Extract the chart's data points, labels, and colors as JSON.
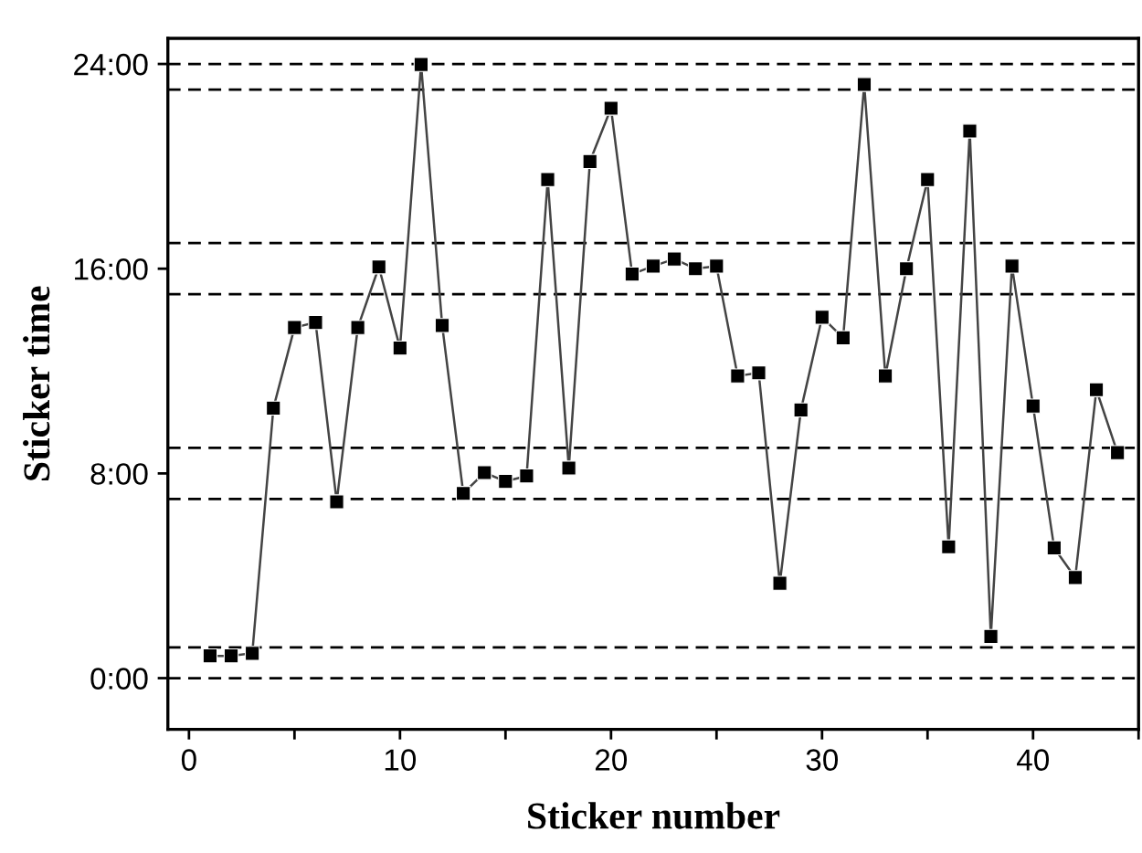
{
  "chart_data": {
    "type": "line",
    "xlabel": "Sticker number",
    "ylabel": "Sticker time",
    "x": [
      1,
      2,
      3,
      4,
      5,
      6,
      7,
      8,
      9,
      10,
      11,
      12,
      13,
      14,
      15,
      16,
      17,
      18,
      19,
      20,
      21,
      22,
      23,
      24,
      25,
      26,
      27,
      28,
      29,
      30,
      31,
      32,
      33,
      34,
      35,
      36,
      37,
      38,
      39,
      40,
      41,
      42,
      43,
      44
    ],
    "series": [
      {
        "color": "#000000",
        "values": [
          0.87,
          0.87,
          0.97,
          10.55,
          13.7,
          13.9,
          6.89,
          13.7,
          16.07,
          12.9,
          23.98,
          13.78,
          7.22,
          8.03,
          7.69,
          7.9,
          19.48,
          8.21,
          20.19,
          22.27,
          15.79,
          16.1,
          16.38,
          16.0,
          16.1,
          11.81,
          11.93,
          3.71,
          10.48,
          14.1,
          13.3,
          23.2,
          11.81,
          16.0,
          19.48,
          5.13,
          21.38,
          1.63,
          16.1,
          10.63,
          5.09,
          3.93,
          11.27,
          8.81
        ]
      }
    ],
    "marker": "square",
    "line_style": "solid",
    "xlim": [
      -1,
      45
    ],
    "ylim": [
      -2,
      25
    ],
    "xticks": [
      0,
      {
        "value": 5,
        "label": null
      },
      10,
      {
        "value": 15,
        "label": null
      },
      20,
      {
        "value": 25,
        "label": null
      },
      30,
      {
        "value": 35,
        "label": null
      },
      40,
      {
        "value": 45,
        "label": null
      }
    ],
    "yticks": [
      {
        "value": 0,
        "label": "0:00"
      },
      {
        "value": 8,
        "label": "8:00"
      },
      {
        "value": 16,
        "label": "16:00"
      },
      {
        "value": 24,
        "label": "24:00"
      }
    ],
    "ref_lines": [
      {
        "axis": "y",
        "value": 0,
        "line_style": "dashed"
      },
      {
        "axis": "y",
        "value": 1.2,
        "line_style": "dashed"
      },
      {
        "axis": "y",
        "value": 7,
        "line_style": "dashed"
      },
      {
        "axis": "y",
        "value": 9,
        "line_style": "dashed"
      },
      {
        "axis": "y",
        "value": 15,
        "line_style": "dashed"
      },
      {
        "axis": "y",
        "value": 17,
        "line_style": "dashed"
      },
      {
        "axis": "y",
        "value": 23,
        "line_style": "dashed"
      },
      {
        "axis": "y",
        "value": 24,
        "line_style": "dashed"
      }
    ],
    "grid": false,
    "legend": false
  }
}
